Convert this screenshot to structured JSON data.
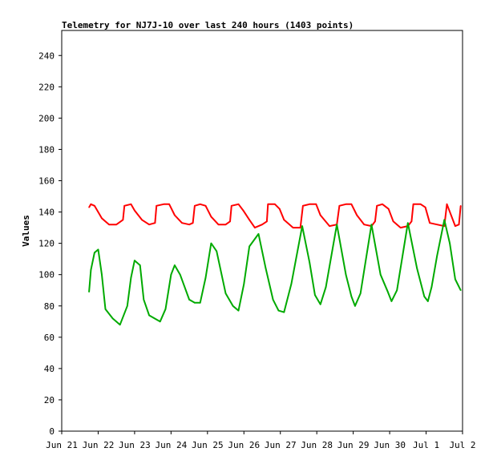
{
  "chart_data": {
    "type": "line",
    "title": "Telemetry for NJ7J-10 over last 240 hours (1403 points)",
    "xlabel": "",
    "ylabel": "Values",
    "xlim": [
      0,
      11
    ],
    "ylim": [
      0,
      256
    ],
    "y_ticks": [
      0,
      20,
      40,
      60,
      80,
      100,
      120,
      140,
      160,
      180,
      200,
      220,
      240
    ],
    "x_ticks": [
      {
        "x": 0,
        "label": "Jun 21"
      },
      {
        "x": 1,
        "label": "Jun 22"
      },
      {
        "x": 2,
        "label": "Jun 23"
      },
      {
        "x": 3,
        "label": "Jun 24"
      },
      {
        "x": 4,
        "label": "Jun 25"
      },
      {
        "x": 5,
        "label": "Jun 26"
      },
      {
        "x": 6,
        "label": "Jun 27"
      },
      {
        "x": 7,
        "label": "Jun 28"
      },
      {
        "x": 8,
        "label": "Jun 29"
      },
      {
        "x": 9,
        "label": "Jun 30"
      },
      {
        "x": 10,
        "label": "Jul 1"
      },
      {
        "x": 11,
        "label": "Jul 2"
      }
    ],
    "grid": false,
    "series": [
      {
        "color": "#ff0000",
        "x": [
          0.75,
          0.8,
          0.9,
          1.0,
          1.1,
          1.3,
          1.5,
          1.68,
          1.72,
          1.9,
          2.0,
          2.2,
          2.4,
          2.56,
          2.6,
          2.8,
          2.95,
          3.1,
          3.3,
          3.5,
          3.6,
          3.65,
          3.8,
          3.95,
          4.1,
          4.3,
          4.5,
          4.62,
          4.66,
          4.85,
          4.98,
          5.15,
          5.3,
          5.5,
          5.63,
          5.66,
          5.85,
          5.98,
          6.1,
          6.35,
          6.55,
          6.62,
          6.8,
          6.98,
          7.1,
          7.35,
          7.55,
          7.62,
          7.8,
          7.95,
          8.1,
          8.3,
          8.5,
          8.6,
          8.65,
          8.8,
          8.97,
          9.1,
          9.3,
          9.5,
          9.6,
          9.65,
          9.85,
          9.98,
          10.1,
          10.3,
          10.5,
          10.57,
          10.8,
          10.9,
          10.95
        ],
        "y": [
          143,
          145,
          144,
          140,
          136,
          132,
          132,
          135,
          144,
          145,
          141,
          135,
          132,
          133,
          144,
          145,
          145,
          138,
          133,
          132,
          133,
          144,
          145,
          144,
          137,
          132,
          132,
          134,
          144,
          145,
          141,
          135,
          130,
          132,
          134,
          145,
          145,
          142,
          135,
          130,
          130,
          144,
          145,
          145,
          138,
          131,
          132,
          144,
          145,
          145,
          138,
          132,
          131,
          134,
          144,
          145,
          142,
          134,
          130,
          131,
          134,
          145,
          145,
          143,
          133,
          132,
          131,
          145,
          131,
          132,
          144
        ]
      },
      {
        "color": "#00aa00",
        "x": [
          0.75,
          0.8,
          0.9,
          1.0,
          1.1,
          1.2,
          1.4,
          1.6,
          1.8,
          1.9,
          2.0,
          2.15,
          2.25,
          2.4,
          2.55,
          2.7,
          2.85,
          3.0,
          3.1,
          3.25,
          3.5,
          3.65,
          3.8,
          3.95,
          4.1,
          4.25,
          4.5,
          4.7,
          4.85,
          5.0,
          5.15,
          5.4,
          5.6,
          5.8,
          5.95,
          6.1,
          6.3,
          6.6,
          6.8,
          6.95,
          7.1,
          7.25,
          7.55,
          7.8,
          7.95,
          8.05,
          8.2,
          8.5,
          8.75,
          8.95,
          9.05,
          9.2,
          9.5,
          9.75,
          9.95,
          10.05,
          10.15,
          10.3,
          10.5,
          10.65,
          10.8,
          10.95
        ],
        "y": [
          89,
          103,
          114,
          116,
          100,
          78,
          72,
          68,
          80,
          98,
          109,
          106,
          84,
          74,
          72,
          70,
          78,
          100,
          106,
          100,
          84,
          82,
          82,
          98,
          120,
          115,
          88,
          80,
          77,
          94,
          118,
          126,
          104,
          84,
          77,
          76,
          94,
          131,
          108,
          87,
          81,
          92,
          132,
          100,
          86,
          80,
          88,
          132,
          100,
          89,
          83,
          90,
          133,
          104,
          86,
          83,
          92,
          112,
          135,
          120,
          97,
          90
        ],
        "extra_points_note": ""
      }
    ]
  }
}
